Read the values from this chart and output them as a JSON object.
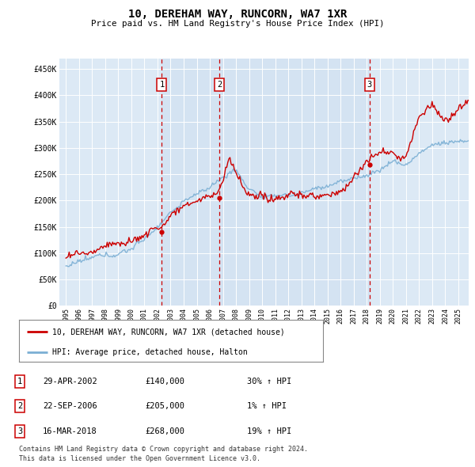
{
  "title": "10, DEREHAM WAY, RUNCORN, WA7 1XR",
  "subtitle": "Price paid vs. HM Land Registry's House Price Index (HPI)",
  "legend_line1": "10, DEREHAM WAY, RUNCORN, WA7 1XR (detached house)",
  "legend_line2": "HPI: Average price, detached house, Halton",
  "footer1": "Contains HM Land Registry data © Crown copyright and database right 2024.",
  "footer2": "This data is licensed under the Open Government Licence v3.0.",
  "transactions": [
    {
      "label": "1",
      "date": "29-APR-2002",
      "price": 140000,
      "hpi_pct": "30% ↑ HPI",
      "x": 2002.33
    },
    {
      "label": "2",
      "date": "22-SEP-2006",
      "price": 205000,
      "hpi_pct": "1% ↑ HPI",
      "x": 2006.72
    },
    {
      "label": "3",
      "date": "16-MAR-2018",
      "price": 268000,
      "hpi_pct": "19% ↑ HPI",
      "x": 2018.21
    }
  ],
  "hpi_color": "#7bafd4",
  "price_color": "#cc0000",
  "vline_color": "#cc0000",
  "plot_bg": "#dce9f5",
  "ylim": [
    0,
    470000
  ],
  "xlim": [
    1994.5,
    2025.8
  ],
  "yticks": [
    0,
    50000,
    100000,
    150000,
    200000,
    250000,
    300000,
    350000,
    400000,
    450000
  ],
  "ytick_labels": [
    "£0",
    "£50K",
    "£100K",
    "£150K",
    "£200K",
    "£250K",
    "£300K",
    "£350K",
    "£400K",
    "£450K"
  ],
  "xticks": [
    1995,
    1996,
    1997,
    1998,
    1999,
    2000,
    2001,
    2002,
    2003,
    2004,
    2005,
    2006,
    2007,
    2008,
    2009,
    2010,
    2011,
    2012,
    2013,
    2014,
    2015,
    2016,
    2017,
    2018,
    2019,
    2020,
    2021,
    2022,
    2023,
    2024,
    2025
  ],
  "xtick_labels": [
    "1995",
    "1996",
    "1997",
    "1998",
    "1999",
    "2000",
    "2001",
    "2002",
    "2003",
    "2004",
    "2005",
    "2006",
    "2007",
    "2008",
    "2009",
    "2010",
    "2011",
    "2012",
    "2013",
    "2014",
    "2015",
    "2016",
    "2017",
    "2018",
    "2019",
    "2020",
    "2021",
    "2022",
    "2023",
    "2024",
    "2025"
  ]
}
